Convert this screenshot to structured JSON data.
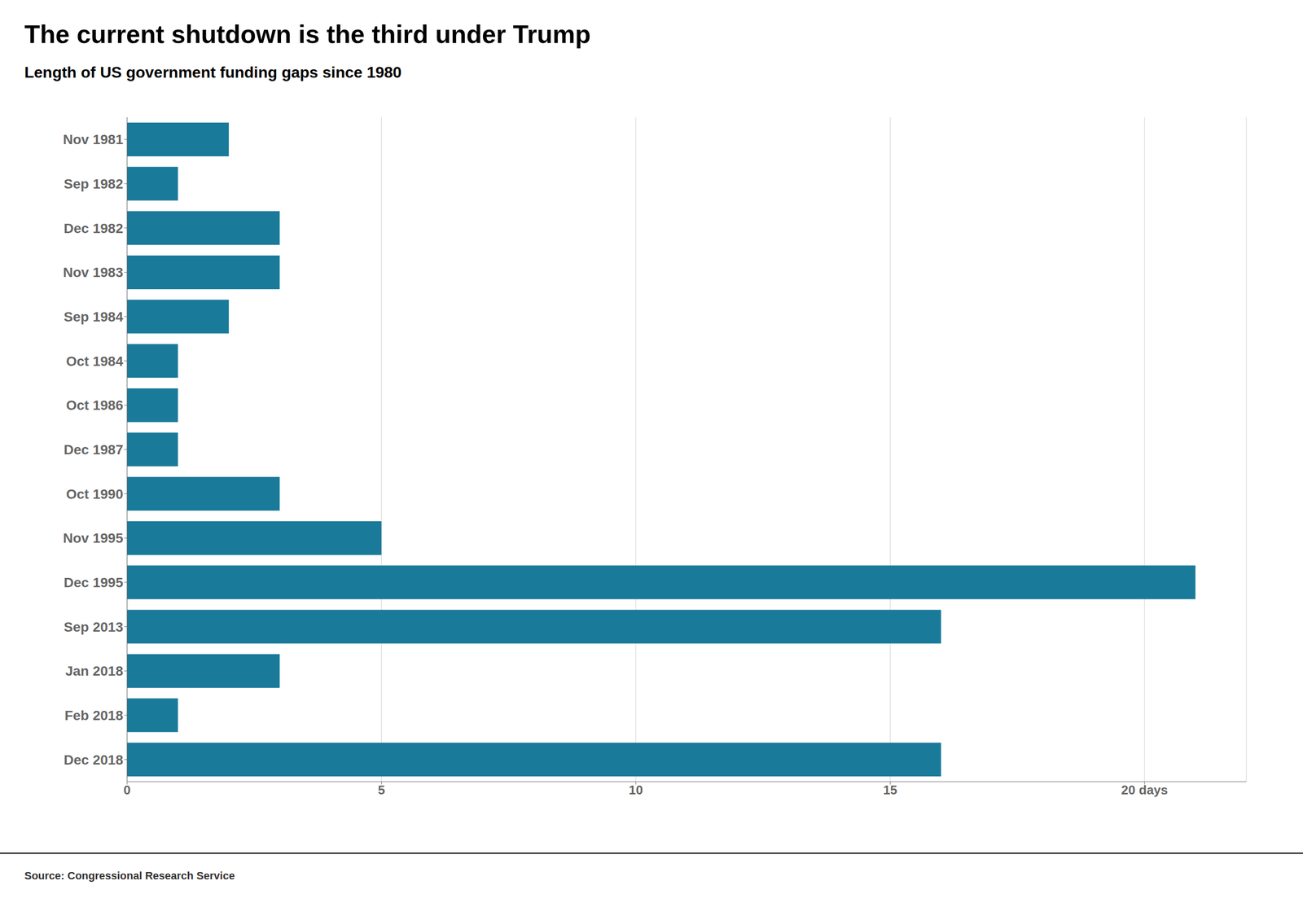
{
  "chart_data": {
    "type": "bar",
    "orientation": "horizontal",
    "title": "The current shutdown is the third under Trump",
    "subtitle": "Length of US government funding gaps since 1980",
    "source": "Source: Congressional Research Service",
    "categories": [
      "Nov 1981",
      "Sep 1982",
      "Dec 1982",
      "Nov 1983",
      "Sep 1984",
      "Oct 1984",
      "Oct 1986",
      "Dec 1987",
      "Oct 1990",
      "Nov 1995",
      "Dec 1995",
      "Sep 2013",
      "Jan 2018",
      "Feb 2018",
      "Dec 2018"
    ],
    "values": [
      2,
      1,
      3,
      3,
      2,
      1,
      1,
      1,
      3,
      5,
      21,
      16,
      3,
      1,
      16
    ],
    "color": "#1a7a9a",
    "xlim": [
      0,
      22
    ],
    "xticks": [
      0,
      5,
      10,
      15,
      {
        "value": 20,
        "label": "20 days"
      }
    ],
    "grid": true
  }
}
